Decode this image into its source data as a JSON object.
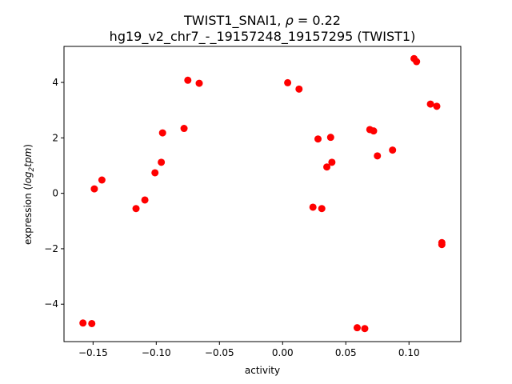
{
  "chart_data": {
    "type": "scatter",
    "title": {
      "line1_prefix": "TWIST1_SNAI1, ",
      "rho_symbol": "ρ",
      "rho_value": " = 0.22",
      "line2": "hg19_v2_chr7_-_19157248_19157295 (TWIST1)"
    },
    "xlabel": "activity",
    "ylabel": {
      "prefix": "expression (",
      "log": "log",
      "sub": "2",
      "unit": "tpm",
      "suffix": ")"
    },
    "xlim": [
      -0.173,
      0.141
    ],
    "ylim": [
      -5.35,
      5.3
    ],
    "xticks": [
      -0.15,
      -0.1,
      -0.05,
      0.0,
      0.05,
      0.1
    ],
    "xtick_labels": [
      "−0.15",
      "−0.10",
      "−0.05",
      "0.00",
      "0.05",
      "0.10"
    ],
    "yticks": [
      -4,
      -2,
      0,
      2,
      4
    ],
    "ytick_labels": [
      "−4",
      "−2",
      "0",
      "2",
      "4"
    ],
    "marker_color": "#ff0000",
    "points": [
      {
        "x": -0.158,
        "y": -4.68
      },
      {
        "x": -0.151,
        "y": -4.7
      },
      {
        "x": -0.149,
        "y": 0.16
      },
      {
        "x": -0.143,
        "y": 0.48
      },
      {
        "x": -0.116,
        "y": -0.55
      },
      {
        "x": -0.109,
        "y": -0.24
      },
      {
        "x": -0.101,
        "y": 0.74
      },
      {
        "x": -0.096,
        "y": 1.12
      },
      {
        "x": -0.095,
        "y": 2.18
      },
      {
        "x": -0.078,
        "y": 2.34
      },
      {
        "x": -0.075,
        "y": 4.08
      },
      {
        "x": -0.066,
        "y": 3.97
      },
      {
        "x": 0.004,
        "y": 3.99
      },
      {
        "x": 0.013,
        "y": 3.76
      },
      {
        "x": 0.024,
        "y": -0.5
      },
      {
        "x": 0.028,
        "y": 1.96
      },
      {
        "x": 0.031,
        "y": -0.55
      },
      {
        "x": 0.035,
        "y": 0.95
      },
      {
        "x": 0.038,
        "y": 2.02
      },
      {
        "x": 0.039,
        "y": 1.12
      },
      {
        "x": 0.059,
        "y": -4.85
      },
      {
        "x": 0.065,
        "y": -4.88
      },
      {
        "x": 0.069,
        "y": 2.3
      },
      {
        "x": 0.072,
        "y": 2.25
      },
      {
        "x": 0.075,
        "y": 1.35
      },
      {
        "x": 0.087,
        "y": 1.56
      },
      {
        "x": 0.104,
        "y": 4.86
      },
      {
        "x": 0.106,
        "y": 4.75
      },
      {
        "x": 0.117,
        "y": 3.22
      },
      {
        "x": 0.122,
        "y": 3.14
      },
      {
        "x": 0.126,
        "y": -1.78
      },
      {
        "x": 0.126,
        "y": -1.85
      }
    ]
  }
}
